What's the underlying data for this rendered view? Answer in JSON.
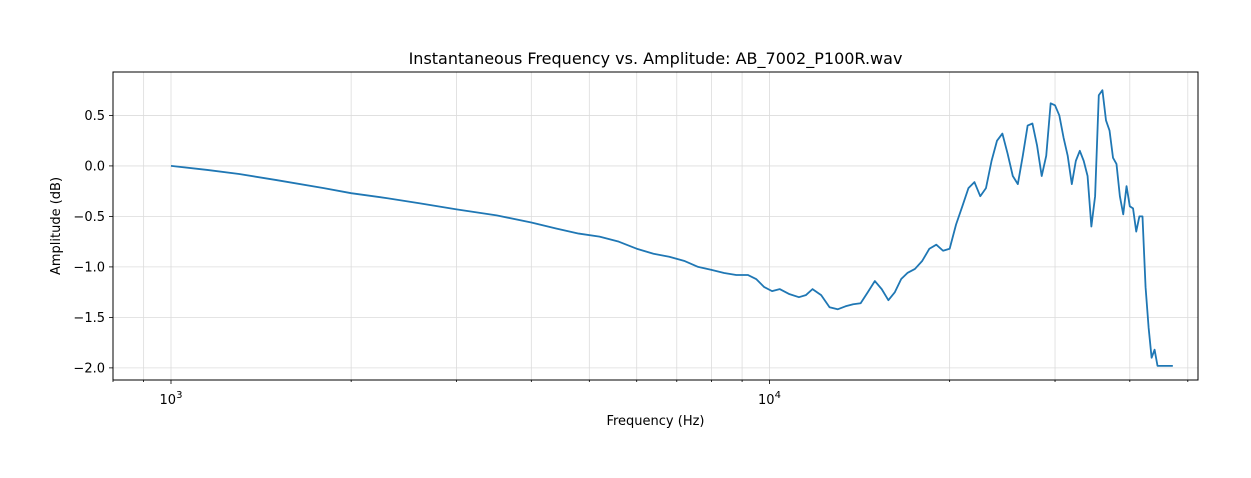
{
  "chart_data": {
    "type": "line",
    "title": "Instantaneous Frequency vs. Amplitude: AB_7002_P100R.wav",
    "xlabel": "Frequency (Hz)",
    "ylabel": "Amplitude (dB)",
    "xscale": "log",
    "xlim": [
      800,
      52000
    ],
    "ylim": [
      -2.12,
      0.93
    ],
    "grid": true,
    "y_ticks": [
      0.5,
      0.0,
      -0.5,
      -1.0,
      -1.5,
      -2.0
    ],
    "y_tick_labels": [
      "0.5",
      "0.0",
      "−0.5",
      "−1.0",
      "−1.5",
      "−2.0"
    ],
    "x_major_ticks": [
      {
        "base": "10",
        "exp": "3",
        "value": 1000
      },
      {
        "base": "10",
        "exp": "4",
        "value": 10000
      }
    ],
    "series": [
      {
        "color": "#1f77b4",
        "x": [
          1000,
          1150,
          1300,
          1500,
          1800,
          2000,
          2300,
          2600,
          3000,
          3500,
          4000,
          4400,
          4800,
          5200,
          5600,
          6000,
          6400,
          6800,
          7200,
          7600,
          8000,
          8400,
          8800,
          9200,
          9500,
          9800,
          10100,
          10400,
          10800,
          11200,
          11500,
          11800,
          12200,
          12600,
          13000,
          13400,
          13800,
          14200,
          14600,
          15000,
          15400,
          15800,
          16200,
          16600,
          17000,
          17500,
          18000,
          18500,
          19000,
          19500,
          20000,
          20500,
          21000,
          21500,
          22000,
          22500,
          23000,
          23500,
          24000,
          24500,
          25000,
          25500,
          26000,
          26500,
          27000,
          27500,
          28000,
          28500,
          29000,
          29500,
          30000,
          30500,
          31000,
          31500,
          32000,
          32500,
          33000,
          33500,
          34000,
          34500,
          35000,
          35500,
          36000,
          36500,
          37000,
          37500,
          38000,
          38500,
          39000,
          39500,
          40000,
          40500,
          41000,
          41500,
          42000,
          42500,
          43000,
          43500,
          44000,
          44500,
          45000,
          45500,
          46000,
          46300,
          46600,
          46900,
          47200
        ],
        "y": [
          0.0,
          -0.04,
          -0.08,
          -0.14,
          -0.22,
          -0.27,
          -0.32,
          -0.37,
          -0.43,
          -0.49,
          -0.56,
          -0.62,
          -0.67,
          -0.7,
          -0.75,
          -0.82,
          -0.87,
          -0.9,
          -0.94,
          -1.0,
          -1.03,
          -1.06,
          -1.08,
          -1.08,
          -1.12,
          -1.2,
          -1.24,
          -1.22,
          -1.27,
          -1.3,
          -1.28,
          -1.22,
          -1.28,
          -1.4,
          -1.42,
          -1.39,
          -1.37,
          -1.36,
          -1.25,
          -1.14,
          -1.22,
          -1.33,
          -1.25,
          -1.12,
          -1.06,
          -1.02,
          -0.94,
          -0.82,
          -0.78,
          -0.84,
          -0.82,
          -0.58,
          -0.4,
          -0.22,
          -0.16,
          -0.3,
          -0.22,
          0.05,
          0.25,
          0.32,
          0.12,
          -0.1,
          -0.18,
          0.1,
          0.4,
          0.42,
          0.2,
          -0.1,
          0.1,
          0.62,
          0.6,
          0.5,
          0.28,
          0.1,
          -0.18,
          0.05,
          0.15,
          0.05,
          -0.1,
          -0.6,
          -0.3,
          0.7,
          0.75,
          0.45,
          0.35,
          0.08,
          0.02,
          -0.3,
          -0.48,
          -0.2,
          -0.4,
          -0.42,
          -0.65,
          -0.5,
          -0.5,
          -1.2,
          -1.6,
          -1.9,
          -1.82,
          -1.98,
          -1.98,
          -1.98,
          -1.98,
          -1.98,
          -1.98,
          -1.98,
          -1.98
        ]
      }
    ]
  }
}
